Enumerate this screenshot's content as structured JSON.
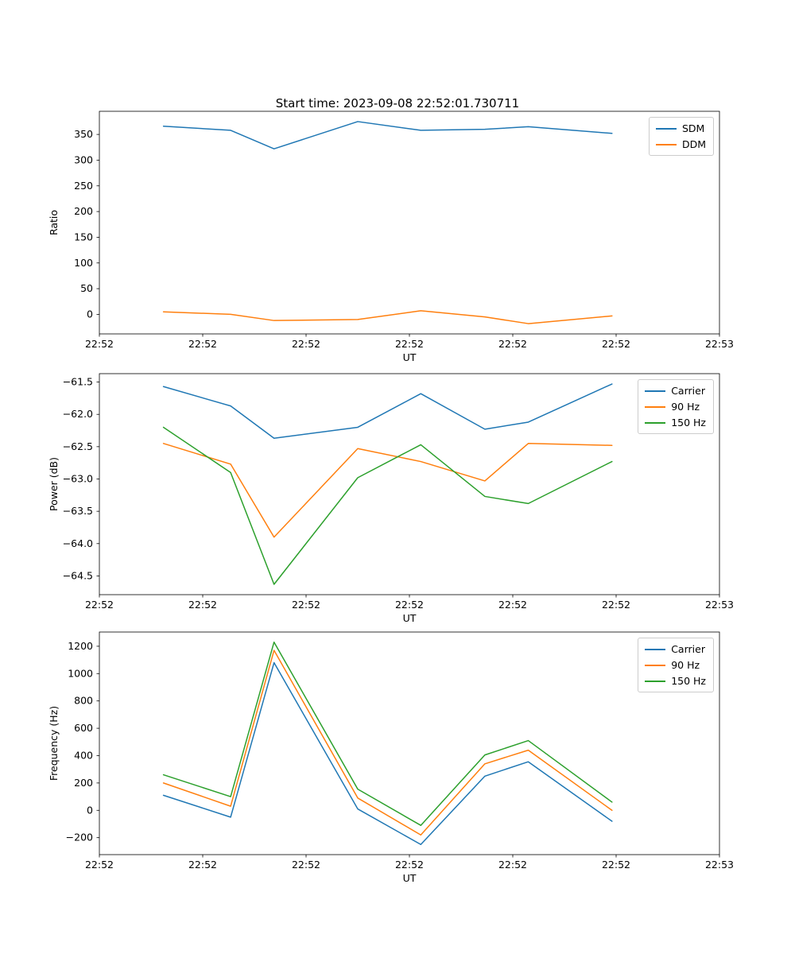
{
  "figure": {
    "title": "Start time: 2023-09-08 22:52:01.730711",
    "background": "#ffffff"
  },
  "chart_data": [
    {
      "type": "line",
      "title": "",
      "xlabel": "UT",
      "ylabel": "Ratio",
      "xlim": [
        0,
        60
      ],
      "ylim": [
        -38,
        395
      ],
      "grid": false,
      "legend_position": "upper right",
      "xticks": {
        "values": [
          0,
          10,
          20,
          30,
          40,
          50,
          60
        ],
        "labels": [
          "22:52",
          "22:52",
          "22:52",
          "22:52",
          "22:52",
          "22:52",
          "22:53"
        ]
      },
      "yticks": {
        "values": [
          0,
          50,
          100,
          150,
          200,
          250,
          300,
          350
        ],
        "labels": [
          "0",
          "50",
          "100",
          "150",
          "200",
          "250",
          "300",
          "350"
        ]
      },
      "x_seconds": [
        6.2,
        12.7,
        16.9,
        25.0,
        31.1,
        37.3,
        41.5,
        49.6
      ],
      "series": [
        {
          "name": "SDM",
          "color": "#1f77b4",
          "values": [
            366,
            358,
            322,
            375,
            358,
            360,
            365,
            352
          ]
        },
        {
          "name": "DDM",
          "color": "#ff7f0e",
          "values": [
            5,
            0,
            -12,
            -10,
            7,
            -5,
            -18,
            -3
          ]
        }
      ]
    },
    {
      "type": "line",
      "title": "",
      "xlabel": "UT",
      "ylabel": "Power (dB)",
      "xlim": [
        0,
        60
      ],
      "ylim": [
        -64.79,
        -61.37
      ],
      "grid": false,
      "legend_position": "upper right",
      "xticks": {
        "values": [
          0,
          10,
          20,
          30,
          40,
          50,
          60
        ],
        "labels": [
          "22:52",
          "22:52",
          "22:52",
          "22:52",
          "22:52",
          "22:52",
          "22:53"
        ]
      },
      "yticks": {
        "values": [
          -64.5,
          -64.0,
          -63.5,
          -63.0,
          -62.5,
          -62.0,
          -61.5
        ],
        "labels": [
          "−64.5",
          "−64.0",
          "−63.5",
          "−63.0",
          "−62.5",
          "−62.0",
          "−61.5"
        ]
      },
      "x_seconds": [
        6.2,
        12.7,
        16.9,
        25.0,
        31.1,
        37.3,
        41.5,
        49.6
      ],
      "series": [
        {
          "name": "Carrier",
          "color": "#1f77b4",
          "values": [
            -61.57,
            -61.87,
            -62.37,
            -62.2,
            -61.68,
            -62.23,
            -62.12,
            -61.53
          ]
        },
        {
          "name": "90 Hz",
          "color": "#ff7f0e",
          "values": [
            -62.45,
            -62.77,
            -63.9,
            -62.53,
            -62.73,
            -63.03,
            -62.45,
            -62.48
          ]
        },
        {
          "name": "150 Hz",
          "color": "#2ca02c",
          "values": [
            -62.2,
            -62.9,
            -64.63,
            -62.98,
            -62.47,
            -63.27,
            -63.38,
            -62.73
          ]
        }
      ]
    },
    {
      "type": "line",
      "title": "",
      "xlabel": "UT",
      "ylabel": "Frequency (Hz)",
      "xlim": [
        0,
        60
      ],
      "ylim": [
        -324,
        1304
      ],
      "grid": false,
      "legend_position": "upper right",
      "xticks": {
        "values": [
          0,
          10,
          20,
          30,
          40,
          50,
          60
        ],
        "labels": [
          "22:52",
          "22:52",
          "22:52",
          "22:52",
          "22:52",
          "22:52",
          "22:53"
        ]
      },
      "yticks": {
        "values": [
          -200,
          0,
          200,
          400,
          600,
          800,
          1000,
          1200
        ],
        "labels": [
          "−200",
          "0",
          "200",
          "400",
          "600",
          "800",
          "1000",
          "1200"
        ]
      },
      "x_seconds": [
        6.2,
        12.7,
        16.9,
        25.0,
        31.1,
        37.3,
        41.5,
        49.6
      ],
      "series": [
        {
          "name": "Carrier",
          "color": "#1f77b4",
          "values": [
            110,
            -50,
            1080,
            10,
            -250,
            250,
            355,
            -80
          ]
        },
        {
          "name": "90 Hz",
          "color": "#ff7f0e",
          "values": [
            200,
            30,
            1170,
            90,
            -180,
            340,
            440,
            0
          ]
        },
        {
          "name": "150 Hz",
          "color": "#2ca02c",
          "values": [
            260,
            100,
            1230,
            155,
            -110,
            405,
            510,
            60
          ]
        }
      ]
    }
  ]
}
